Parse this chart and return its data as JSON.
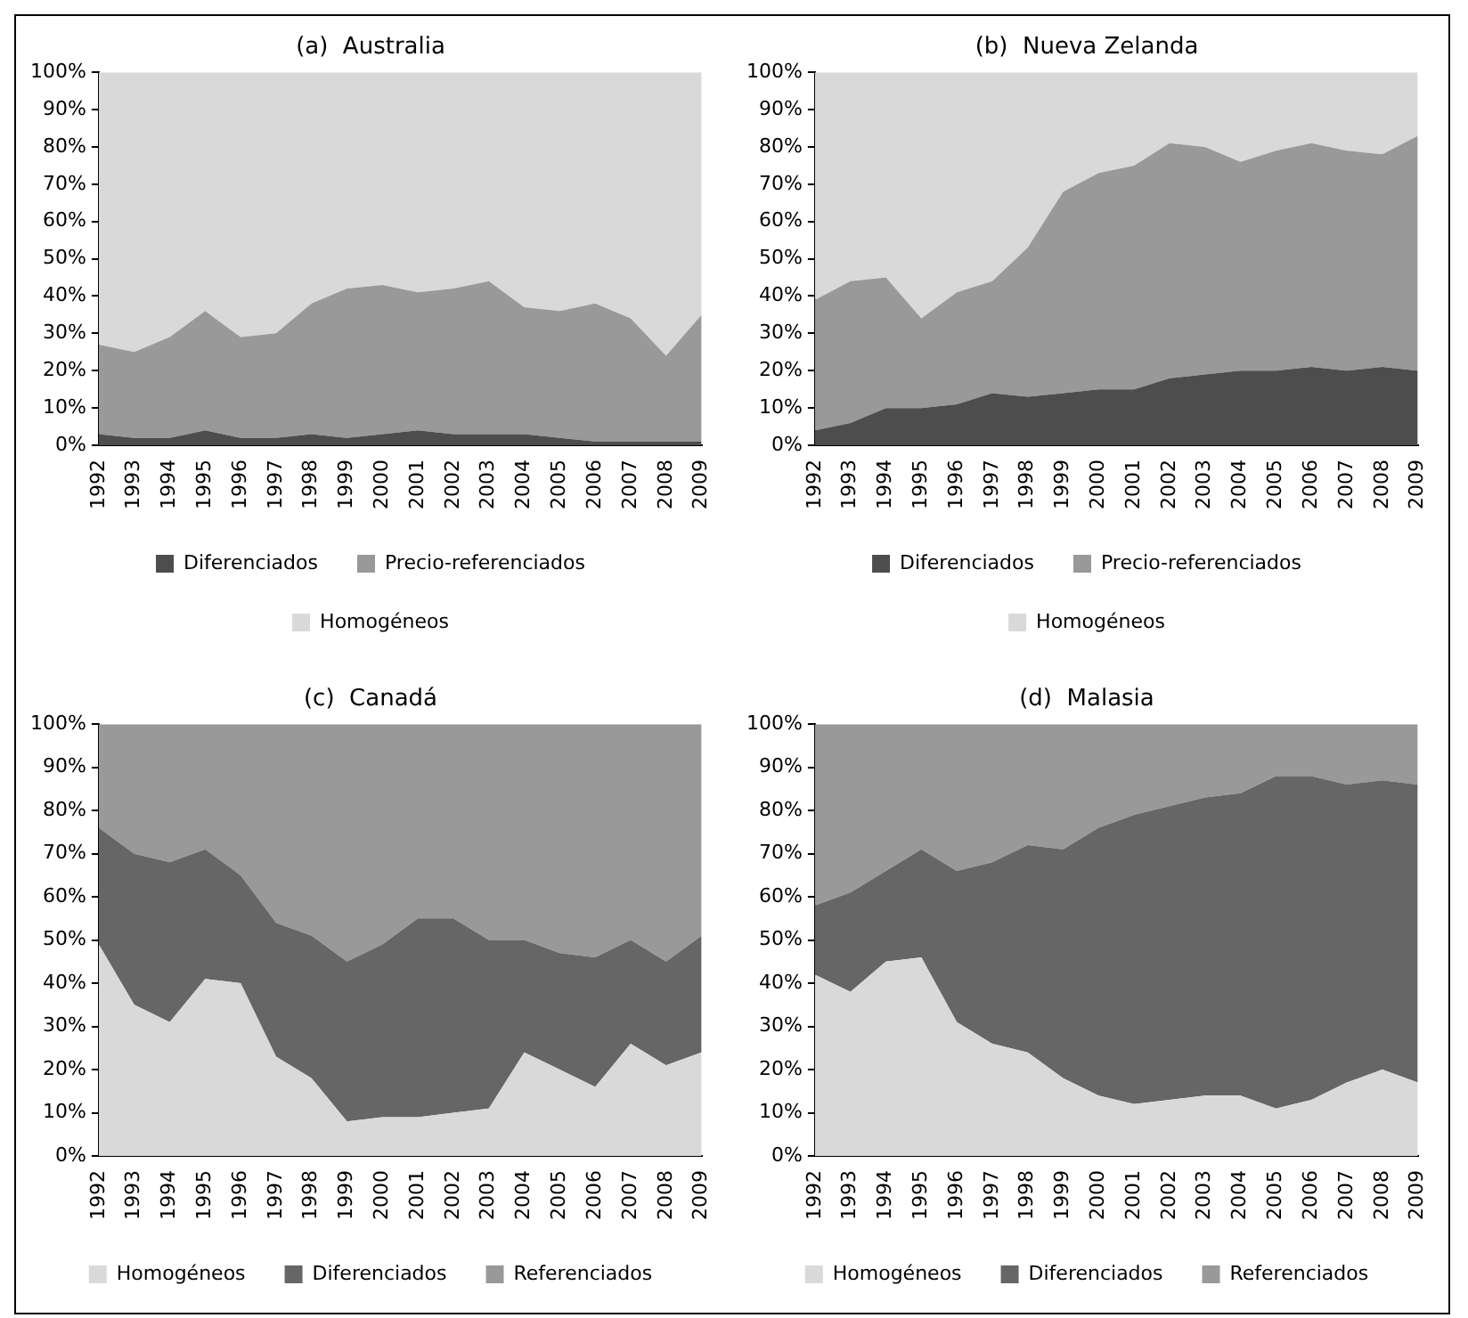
{
  "chart_data": [
    {
      "type": "area",
      "title": "(a)  Australia",
      "stacked": true,
      "legend": "bottom",
      "categories": [
        "1992",
        "1993",
        "1994",
        "1995",
        "1996",
        "1997",
        "1998",
        "1999",
        "2000",
        "2001",
        "2002",
        "2003",
        "2004",
        "2005",
        "2006",
        "2007",
        "2008",
        "2009"
      ],
      "ylim": [
        0,
        100
      ],
      "yticks": [
        {
          "value": 0,
          "label": "0%"
        },
        {
          "value": 10,
          "label": "10%"
        },
        {
          "value": 20,
          "label": "20%"
        },
        {
          "value": 30,
          "label": "30%"
        },
        {
          "value": 40,
          "label": "40%"
        },
        {
          "value": 50,
          "label": "50%"
        },
        {
          "value": 60,
          "label": "60%"
        },
        {
          "value": 70,
          "label": "70%"
        },
        {
          "value": 80,
          "label": "80%"
        },
        {
          "value": 90,
          "label": "90%"
        },
        {
          "value": 100,
          "label": "100%"
        }
      ],
      "series": [
        {
          "name": "Diferenciados",
          "color": "#4d4d4d",
          "values": [
            3,
            2,
            2,
            4,
            2,
            2,
            3,
            2,
            3,
            4,
            3,
            3,
            3,
            2,
            1,
            1,
            1,
            1
          ]
        },
        {
          "name": "Precio-referenciados",
          "color": "#999999",
          "values": [
            24,
            23,
            27,
            32,
            27,
            28,
            35,
            40,
            40,
            37,
            39,
            41,
            34,
            34,
            37,
            33,
            23,
            34
          ]
        },
        {
          "name": "Homogéneos",
          "color": "#d9d9d9",
          "values": [
            73,
            75,
            71,
            64,
            71,
            70,
            62,
            58,
            57,
            59,
            58,
            56,
            63,
            64,
            62,
            66,
            76,
            65
          ]
        }
      ]
    },
    {
      "type": "area",
      "title": "(b)  Nueva Zelanda",
      "stacked": true,
      "legend": "bottom",
      "categories": [
        "1992",
        "1993",
        "1994",
        "1995",
        "1996",
        "1997",
        "1998",
        "1999",
        "2000",
        "2001",
        "2002",
        "2003",
        "2004",
        "2005",
        "2006",
        "2007",
        "2008",
        "2009"
      ],
      "ylim": [
        0,
        100
      ],
      "yticks": [
        {
          "value": 0,
          "label": "0%"
        },
        {
          "value": 10,
          "label": "10%"
        },
        {
          "value": 20,
          "label": "20%"
        },
        {
          "value": 30,
          "label": "30%"
        },
        {
          "value": 40,
          "label": "40%"
        },
        {
          "value": 50,
          "label": "50%"
        },
        {
          "value": 60,
          "label": "60%"
        },
        {
          "value": 70,
          "label": "70%"
        },
        {
          "value": 80,
          "label": "80%"
        },
        {
          "value": 90,
          "label": "90%"
        },
        {
          "value": 100,
          "label": "100%"
        }
      ],
      "series": [
        {
          "name": "Diferenciados",
          "color": "#4d4d4d",
          "values": [
            4,
            6,
            10,
            10,
            11,
            14,
            13,
            14,
            15,
            15,
            18,
            19,
            20,
            20,
            21,
            20,
            21,
            20
          ]
        },
        {
          "name": "Precio-referenciados",
          "color": "#999999",
          "values": [
            35,
            38,
            35,
            24,
            30,
            30,
            40,
            54,
            58,
            60,
            63,
            61,
            56,
            59,
            60,
            59,
            57,
            63
          ]
        },
        {
          "name": "Homogéneos",
          "color": "#d9d9d9",
          "values": [
            61,
            56,
            55,
            66,
            59,
            56,
            47,
            32,
            27,
            25,
            19,
            20,
            24,
            21,
            19,
            21,
            22,
            17
          ]
        }
      ]
    },
    {
      "type": "area",
      "title": "(c)  Canadá",
      "stacked": true,
      "legend": "bottom",
      "categories": [
        "1992",
        "1993",
        "1994",
        "1995",
        "1996",
        "1997",
        "1998",
        "1999",
        "2000",
        "2001",
        "2002",
        "2003",
        "2004",
        "2005",
        "2006",
        "2007",
        "2008",
        "2009"
      ],
      "ylim": [
        0,
        100
      ],
      "yticks": [
        {
          "value": 0,
          "label": "0%"
        },
        {
          "value": 10,
          "label": "10%"
        },
        {
          "value": 20,
          "label": "20%"
        },
        {
          "value": 30,
          "label": "30%"
        },
        {
          "value": 40,
          "label": "40%"
        },
        {
          "value": 50,
          "label": "50%"
        },
        {
          "value": 60,
          "label": "60%"
        },
        {
          "value": 70,
          "label": "70%"
        },
        {
          "value": 80,
          "label": "80%"
        },
        {
          "value": 90,
          "label": "90%"
        },
        {
          "value": 100,
          "label": "100%"
        }
      ],
      "series": [
        {
          "name": "Homogéneos",
          "color": "#d9d9d9",
          "values": [
            49,
            35,
            31,
            41,
            40,
            23,
            18,
            8,
            9,
            9,
            10,
            11,
            24,
            20,
            16,
            26,
            21,
            24
          ]
        },
        {
          "name": "Diferenciados",
          "color": "#666666",
          "values": [
            27,
            35,
            37,
            30,
            25,
            31,
            33,
            37,
            40,
            46,
            45,
            39,
            26,
            27,
            30,
            24,
            24,
            27
          ]
        },
        {
          "name": "Referenciados",
          "color": "#999999",
          "values": [
            24,
            30,
            32,
            29,
            35,
            46,
            49,
            55,
            51,
            45,
            45,
            50,
            50,
            53,
            54,
            50,
            55,
            49
          ]
        }
      ]
    },
    {
      "type": "area",
      "title": "(d)  Malasia",
      "stacked": true,
      "legend": "bottom",
      "categories": [
        "1992",
        "1993",
        "1994",
        "1995",
        "1996",
        "1997",
        "1998",
        "1999",
        "2000",
        "2001",
        "2002",
        "2003",
        "2004",
        "2005",
        "2006",
        "2007",
        "2008",
        "2009"
      ],
      "ylim": [
        0,
        100
      ],
      "yticks": [
        {
          "value": 0,
          "label": "0%"
        },
        {
          "value": 10,
          "label": "10%"
        },
        {
          "value": 20,
          "label": "20%"
        },
        {
          "value": 30,
          "label": "30%"
        },
        {
          "value": 40,
          "label": "40%"
        },
        {
          "value": 50,
          "label": "50%"
        },
        {
          "value": 60,
          "label": "60%"
        },
        {
          "value": 70,
          "label": "70%"
        },
        {
          "value": 80,
          "label": "80%"
        },
        {
          "value": 90,
          "label": "90%"
        },
        {
          "value": 100,
          "label": "100%"
        }
      ],
      "series": [
        {
          "name": "Homogéneos",
          "color": "#d9d9d9",
          "values": [
            42,
            38,
            45,
            46,
            31,
            26,
            24,
            18,
            14,
            12,
            13,
            14,
            14,
            11,
            13,
            17,
            20,
            17
          ]
        },
        {
          "name": "Diferenciados",
          "color": "#666666",
          "values": [
            16,
            23,
            21,
            25,
            35,
            42,
            48,
            53,
            62,
            67,
            68,
            69,
            70,
            77,
            75,
            69,
            67,
            69
          ]
        },
        {
          "name": "Referenciados",
          "color": "#999999",
          "values": [
            42,
            39,
            34,
            29,
            34,
            32,
            28,
            29,
            24,
            21,
            19,
            17,
            16,
            12,
            12,
            14,
            13,
            14
          ]
        }
      ]
    }
  ]
}
